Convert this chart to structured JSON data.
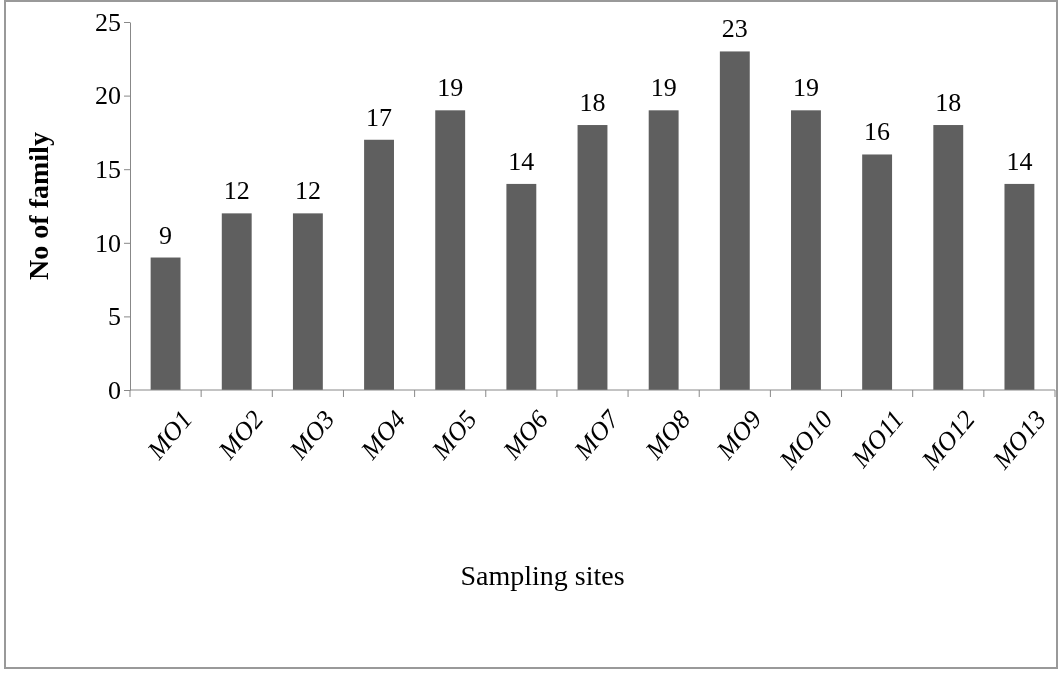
{
  "chart_data": {
    "type": "bar",
    "xlabel": "Sampling sites",
    "ylabel": "No of family",
    "categories": [
      "MO1",
      "MO2",
      "MO3",
      "MO4",
      "MO5",
      "MO6",
      "MO7",
      "MO8",
      "MO9",
      "MO10",
      "MO11",
      "MO12",
      "MO13"
    ],
    "values": [
      9,
      12,
      12,
      17,
      19,
      14,
      18,
      19,
      23,
      19,
      16,
      18,
      14
    ],
    "color": "#5f5f5f",
    "ylim": [
      0,
      25
    ],
    "yticks": [
      0,
      5,
      10,
      15,
      20,
      25
    ],
    "data_labels": true
  }
}
